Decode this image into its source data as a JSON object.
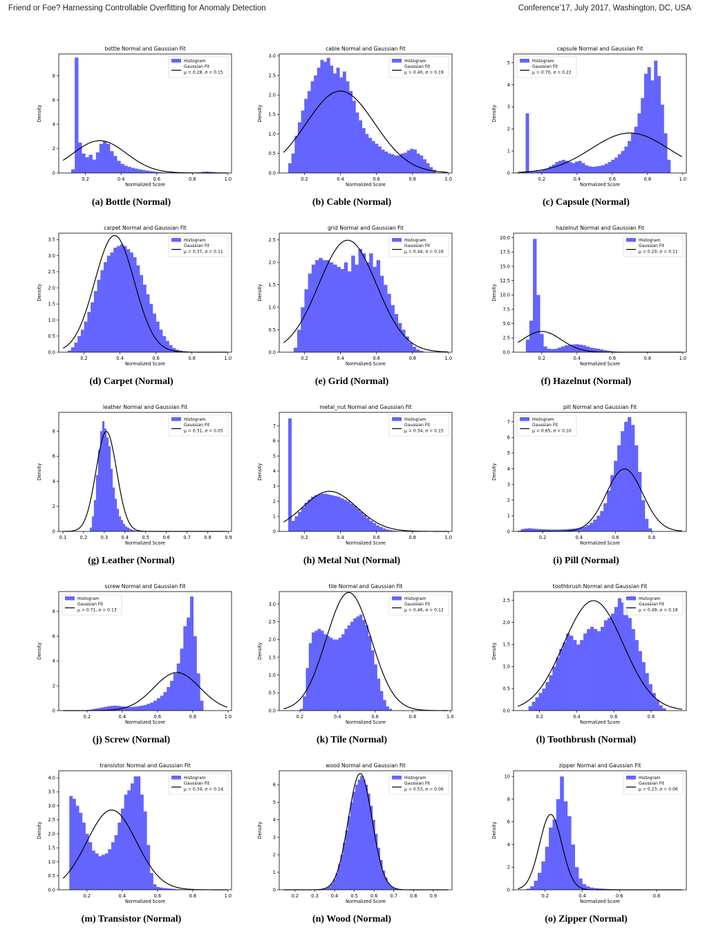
{
  "header": {
    "left": "Friend or Foe? Harnessing Controllable Overfitting for Anomaly Detection",
    "right": "Conference’17, July 2017, Washington, DC, USA"
  },
  "common": {
    "xlabel": "Normalized Score",
    "ylabel": "Density",
    "legend_hist": "Histogram",
    "legend_fit": "Gaussian Fit",
    "hist_color": "#6464ff",
    "fit_color": "#000000"
  },
  "chart_data": [
    {
      "type": "bar",
      "title": "bottle Normal and Gaussian Fit",
      "caption": "(a) Bottle (Normal)",
      "xlim": [
        0.05,
        1.02
      ],
      "xticks": [
        "0.2",
        "0.4",
        "0.6",
        "0.8",
        "1.0"
      ],
      "ylim": [
        0,
        9.8
      ],
      "yticks": [
        "0",
        "2",
        "4",
        "6",
        "8"
      ],
      "mu": 0.28,
      "sigma": 0.15,
      "fit_text": "μ = 0.28,  σ = 0.15",
      "legend": "right",
      "bins": [
        0.12,
        0.99
      ],
      "heights": [
        0.3,
        9.5,
        2.5,
        1.6,
        1.3,
        1.5,
        1.1,
        1.7,
        2.4,
        2.6,
        2.4,
        1.8,
        1.4,
        1.0,
        0.75,
        0.6,
        0.5,
        0.42,
        0.36,
        0.3,
        0.25,
        0.2,
        0.16,
        0.12,
        0.09,
        0.07,
        0.05,
        0.04,
        0.03,
        0.03,
        0.02,
        0.02,
        0.02,
        0.02,
        0.03,
        0.04,
        0.06,
        0.1,
        0.12,
        0.1,
        0.08,
        0.05,
        0.03,
        0.02
      ]
    },
    {
      "type": "bar",
      "title": "cable Normal and Gaussian Fit",
      "caption": "(b) Cable (Normal)",
      "xlim": [
        0.06,
        1.02
      ],
      "xticks": [
        "0.0",
        "0.2",
        "0.4",
        "0.6",
        "0.8",
        "1.0"
      ],
      "ylim": [
        0,
        3.05
      ],
      "yticks": [
        "0.0",
        "0.5",
        "1.0",
        "1.5",
        "2.0",
        "2.5",
        "3.0"
      ],
      "mu": 0.4,
      "sigma": 0.19,
      "fit_text": "μ = 0.40,  σ = 0.19",
      "legend": "right",
      "bins": [
        0.11,
        0.93
      ],
      "heights": [
        0.25,
        0.5,
        0.95,
        1.3,
        1.6,
        1.9,
        2.1,
        2.35,
        2.5,
        2.7,
        2.9,
        2.85,
        2.95,
        2.75,
        2.55,
        2.7,
        2.45,
        2.6,
        2.35,
        2.1,
        1.85,
        1.55,
        1.35,
        1.15,
        1.0,
        0.9,
        0.82,
        0.75,
        0.68,
        0.6,
        0.55,
        0.5,
        0.48,
        0.45,
        0.45,
        0.5,
        0.52,
        0.58,
        0.62,
        0.6,
        0.5,
        0.45,
        0.35,
        0.25,
        0.15,
        0.08
      ]
    },
    {
      "type": "bar",
      "title": "capsule Normal and Gaussian Fit",
      "caption": "(c) Capsule (Normal)",
      "xlim": [
        0.04,
        1.02
      ],
      "xticks": [
        "0.2",
        "0.4",
        "0.6",
        "0.8",
        "1.0"
      ],
      "ylim": [
        0,
        5.4
      ],
      "yticks": [
        "0",
        "1",
        "2",
        "3",
        "4",
        "5"
      ],
      "mu": 0.7,
      "sigma": 0.22,
      "fit_text": "μ = 0.70,  σ = 0.22",
      "legend": "left",
      "bins": [
        0.09,
        0.93
      ],
      "heights": [
        0.05,
        2.7,
        0.08,
        0.06,
        0.08,
        0.1,
        0.15,
        0.2,
        0.3,
        0.38,
        0.5,
        0.55,
        0.6,
        0.55,
        0.5,
        0.45,
        0.52,
        0.55,
        0.45,
        0.35,
        0.3,
        0.28,
        0.3,
        0.32,
        0.35,
        0.42,
        0.5,
        0.6,
        0.7,
        0.85,
        1.0,
        1.2,
        1.45,
        1.8,
        2.1,
        2.7,
        3.4,
        4.5,
        4.8,
        4.2,
        5.1,
        4.4,
        3.1,
        1.8,
        0.6
      ]
    },
    {
      "type": "bar",
      "title": "carpet Normal and Gaussian Fit",
      "caption": "(d) Carpet (Normal)",
      "xlim": [
        0.06,
        1.02
      ],
      "xticks": [
        "0.2",
        "0.4",
        "0.6",
        "0.8",
        "1.0"
      ],
      "ylim": [
        0,
        3.7
      ],
      "yticks": [
        "0.0",
        "0.5",
        "1.0",
        "1.5",
        "2.0",
        "2.5",
        "3.0",
        "3.5"
      ],
      "mu": 0.37,
      "sigma": 0.11,
      "fit_text": "μ = 0.37,  σ = 0.11",
      "legend": "right",
      "bins": [
        0.11,
        0.8
      ],
      "heights": [
        0.05,
        0.15,
        0.3,
        0.5,
        0.7,
        0.95,
        1.25,
        1.55,
        1.9,
        2.25,
        2.55,
        2.8,
        3.0,
        3.1,
        3.25,
        3.3,
        3.35,
        3.3,
        3.2,
        3.1,
        2.95,
        2.7,
        2.4,
        2.1,
        1.8,
        1.5,
        1.2,
        0.95,
        0.7,
        0.5,
        0.35,
        0.22,
        0.13,
        0.08,
        0.05,
        0.03,
        0.02,
        0.01
      ]
    },
    {
      "type": "bar",
      "title": "grid Normal and Gaussian Fit",
      "caption": "(e) Grid (Normal)",
      "xlim": [
        0.06,
        1.02
      ],
      "xticks": [
        "0.0",
        "0.2",
        "0.4",
        "0.6",
        "0.8",
        "1.0"
      ],
      "ylim": [
        0,
        2.65
      ],
      "yticks": [
        "0.0",
        "0.5",
        "1.0",
        "1.5",
        "2.0",
        "2.5"
      ],
      "mu": 0.44,
      "sigma": 0.16,
      "fit_text": "μ = 0.44,  σ = 0.16",
      "legend": "right",
      "bins": [
        0.14,
        0.86
      ],
      "heights": [
        0.1,
        0.5,
        1.0,
        1.4,
        1.75,
        1.95,
        2.05,
        2.1,
        2.05,
        2.05,
        2.0,
        1.95,
        1.9,
        1.85,
        2.0,
        1.8,
        2.15,
        1.95,
        2.3,
        2.2,
        2.0,
        2.2,
        1.9,
        2.05,
        1.7,
        1.5,
        1.3,
        1.05,
        0.85,
        0.65,
        0.5,
        0.35,
        0.22,
        0.12,
        0.06,
        0.03
      ]
    },
    {
      "type": "bar",
      "title": "hazelnut Normal and Gaussian Fit",
      "caption": "(f) Hazelnut (Normal)",
      "xlim": [
        0.04,
        1.02
      ],
      "xticks": [
        "0.2",
        "0.4",
        "0.6",
        "0.8",
        "1.0"
      ],
      "ylim": [
        0,
        20.8
      ],
      "yticks": [
        "0.0",
        "2.5",
        "5.0",
        "7.5",
        "10.0",
        "12.5",
        "15.0",
        "17.5",
        "20.0"
      ],
      "mu": 0.2,
      "sigma": 0.11,
      "fit_text": "μ = 0.20,  σ = 0.11",
      "legend": "right",
      "bins": [
        0.11,
        0.71
      ],
      "heights": [
        2.2,
        5.5,
        19.8,
        10.0,
        3.2,
        1.0,
        0.6,
        0.55,
        0.6,
        0.8,
        1.0,
        1.2,
        1.3,
        1.35,
        1.4,
        1.3,
        1.2,
        1.0,
        0.8,
        0.7,
        0.6,
        0.5,
        0.35,
        0.25,
        0.15,
        0.1,
        0.06,
        0.04,
        0.02,
        0.01
      ]
    },
    {
      "type": "bar",
      "title": "leather Normal and Gaussian Fit",
      "caption": "(g) Leather (Normal)",
      "xlim": [
        0.08,
        0.915
      ],
      "xticks": [
        "0.1",
        "0.2",
        "0.3",
        "0.4",
        "0.5",
        "0.6",
        "0.7",
        "0.8",
        "0.9"
      ],
      "ylim": [
        0,
        9.5
      ],
      "yticks": [
        "0",
        "2",
        "4",
        "6",
        "8"
      ],
      "mu": 0.31,
      "sigma": 0.05,
      "fit_text": "μ = 0.31,  σ = 0.05",
      "legend": "right",
      "bins": [
        0.23,
        0.5
      ],
      "heights": [
        0.3,
        1.2,
        2.5,
        4.5,
        6.5,
        8.0,
        8.8,
        8.2,
        7.5,
        6.8,
        5.0,
        3.5,
        2.6,
        1.8,
        1.2,
        0.9,
        0.6,
        0.4,
        0.3,
        0.2,
        0.12,
        0.08,
        0.05,
        0.04,
        0.03,
        0.02,
        0.02
      ]
    },
    {
      "type": "bar",
      "title": "metal_nut Normal and Gaussian Fit",
      "caption": "(h) Metal Nut (Normal)",
      "xlim": [
        0.06,
        1.02
      ],
      "xticks": [
        "0.0",
        "0.2",
        "0.4",
        "0.6",
        "0.8",
        "1.0"
      ],
      "ylim": [
        0,
        7.9
      ],
      "yticks": [
        "0",
        "1",
        "2",
        "3",
        "4",
        "5",
        "6",
        "7"
      ],
      "mu": 0.34,
      "sigma": 0.15,
      "fit_text": "μ = 0.34,  σ = 0.15",
      "legend": "right",
      "bins": [
        0.11,
        0.76
      ],
      "heights": [
        7.5,
        0.7,
        1.0,
        1.3,
        1.6,
        1.9,
        2.1,
        2.3,
        2.4,
        2.45,
        2.5,
        2.5,
        2.45,
        2.4,
        2.35,
        2.3,
        2.2,
        2.1,
        2.0,
        1.85,
        1.7,
        1.5,
        1.3,
        1.1,
        0.9,
        0.7,
        0.55,
        0.4,
        0.3,
        0.2,
        0.13,
        0.08,
        0.05,
        0.03,
        0.02,
        0.01
      ]
    },
    {
      "type": "bar",
      "title": "pill Normal and Gaussian Fit",
      "caption": "(i) Pill (Normal)",
      "xlim": [
        0.04,
        0.99
      ],
      "xticks": [
        "0.2",
        "0.4",
        "0.6",
        "0.8"
      ],
      "ylim": [
        0,
        7.6
      ],
      "yticks": [
        "0",
        "1",
        "2",
        "3",
        "4",
        "5",
        "6",
        "7"
      ],
      "mu": 0.65,
      "sigma": 0.1,
      "fit_text": "μ = 0.65,  σ = 0.10",
      "legend": "left",
      "bins": [
        0.08,
        0.8
      ],
      "heights": [
        0.15,
        0.18,
        0.2,
        0.18,
        0.16,
        0.15,
        0.14,
        0.13,
        0.12,
        0.12,
        0.12,
        0.12,
        0.13,
        0.14,
        0.16,
        0.18,
        0.2,
        0.25,
        0.3,
        0.4,
        0.55,
        0.75,
        1.0,
        1.3,
        1.8,
        2.6,
        3.6,
        4.5,
        5.5,
        6.4,
        7.0,
        7.3,
        6.8,
        5.5,
        3.8,
        2.0,
        0.8,
        0.2
      ]
    },
    {
      "type": "bar",
      "title": "screw Normal and Gaussian Fit",
      "caption": "(j) Screw (Normal)",
      "xlim": [
        0.04,
        1.02
      ],
      "xticks": [
        "0.2",
        "0.4",
        "0.6",
        "0.8",
        "1.0"
      ],
      "ylim": [
        0,
        9.6
      ],
      "yticks": [
        "0",
        "2",
        "4",
        "6",
        "8"
      ],
      "mu": 0.71,
      "sigma": 0.13,
      "fit_text": "μ = 0.71,  σ = 0.13",
      "legend": "left",
      "bins": [
        0.2,
        0.86
      ],
      "heights": [
        0.05,
        0.1,
        0.15,
        0.2,
        0.25,
        0.3,
        0.35,
        0.38,
        0.4,
        0.38,
        0.35,
        0.32,
        0.3,
        0.3,
        0.32,
        0.35,
        0.4,
        0.45,
        0.55,
        0.65,
        0.8,
        1.0,
        1.2,
        1.5,
        1.9,
        2.4,
        3.0,
        3.8,
        5.0,
        6.8,
        7.5,
        9.2,
        6.0,
        3.0,
        0.8
      ]
    },
    {
      "type": "bar",
      "title": "tile Normal and Gaussian Fit",
      "caption": "(k) Tile (Normal)",
      "xlim": [
        0.09,
        1.01
      ],
      "xticks": [
        "0.2",
        "0.4",
        "0.6",
        "0.8",
        "1.0"
      ],
      "ylim": [
        0,
        3.35
      ],
      "yticks": [
        "0.0",
        "0.5",
        "1.0",
        "1.5",
        "2.0",
        "2.5",
        "3.0"
      ],
      "mu": 0.46,
      "sigma": 0.12,
      "fit_text": "μ = 0.46,  σ = 0.12",
      "legend": "right",
      "bins": [
        0.2,
        0.69
      ],
      "heights": [
        0.05,
        0.4,
        1.2,
        1.9,
        2.2,
        2.25,
        2.3,
        2.25,
        2.15,
        2.1,
        2.05,
        2.0,
        2.0,
        2.05,
        2.15,
        2.3,
        2.4,
        2.5,
        2.6,
        2.65,
        2.7,
        2.55,
        2.4,
        2.1,
        1.7,
        1.3,
        0.9,
        0.55,
        0.3,
        0.12,
        0.05
      ]
    },
    {
      "type": "bar",
      "title": "toothbrush Normal and Gaussian Fit",
      "caption": "(l) Toothbrush (Normal)",
      "xlim": [
        0.06,
        0.99
      ],
      "xticks": [
        "0.2",
        "0.4",
        "0.6",
        "0.8"
      ],
      "ylim": [
        0,
        2.7
      ],
      "yticks": [
        "0.0",
        "0.5",
        "1.0",
        "1.5",
        "2.0",
        "2.5"
      ],
      "mu": 0.49,
      "sigma": 0.16,
      "fit_text": "μ = 0.49,  σ = 0.16",
      "legend": "right",
      "bins": [
        0.14,
        0.88
      ],
      "heights": [
        0.1,
        0.2,
        0.3,
        0.4,
        0.5,
        0.65,
        0.8,
        1.0,
        1.2,
        1.4,
        1.55,
        1.75,
        1.7,
        1.6,
        1.5,
        1.6,
        1.75,
        1.85,
        1.9,
        1.85,
        1.8,
        1.9,
        2.05,
        2.1,
        2.2,
        2.35,
        2.55,
        2.45,
        2.3,
        2.1,
        1.85,
        1.6,
        1.35,
        1.1,
        0.85,
        0.6,
        0.4,
        0.25,
        0.12,
        0.05
      ]
    },
    {
      "type": "bar",
      "title": "transistor Normal and Gaussian Fit",
      "caption": "(m) Transistor (Normal)",
      "xlim": [
        0.04,
        1.02
      ],
      "xticks": [
        "0.2",
        "0.4",
        "0.6",
        "0.8",
        "1.0"
      ],
      "ylim": [
        0,
        4.25
      ],
      "yticks": [
        "0.0",
        "0.5",
        "1.0",
        "1.5",
        "2.0",
        "2.5",
        "3.0",
        "3.5",
        "4.0"
      ],
      "mu": 0.34,
      "sigma": 0.14,
      "fit_text": "μ = 0.34,  σ = 0.14",
      "legend": "right",
      "bins": [
        0.1,
        0.74
      ],
      "heights": [
        3.35,
        3.25,
        3.0,
        2.75,
        2.4,
        2.0,
        1.7,
        1.4,
        1.3,
        1.2,
        1.25,
        1.3,
        1.45,
        1.7,
        1.95,
        2.4,
        2.9,
        3.4,
        3.55,
        3.8,
        4.05,
        4.05,
        3.4,
        2.8,
        1.6,
        0.6,
        0.2,
        0.1,
        0.08,
        0.06,
        0.05,
        0.04,
        0.03,
        0.02,
        0.02
      ]
    },
    {
      "type": "bar",
      "title": "wood Normal and Gaussian Fit",
      "caption": "(n) Wood (Normal)",
      "xlim": [
        0.12,
        0.995
      ],
      "xticks": [
        "0.2",
        "0.3",
        "0.4",
        "0.5",
        "0.6",
        "0.7",
        "0.8",
        "0.9"
      ],
      "ylim": [
        0,
        6.8
      ],
      "yticks": [
        "0",
        "1",
        "2",
        "3",
        "4",
        "5",
        "6"
      ],
      "mu": 0.53,
      "sigma": 0.06,
      "fit_text": "μ = 0.53,  σ = 0.06",
      "legend": "right",
      "bins": [
        0.33,
        0.73
      ],
      "heights": [
        0.02,
        0.05,
        0.1,
        0.2,
        0.35,
        0.6,
        0.95,
        1.45,
        2.0,
        2.7,
        3.4,
        4.2,
        5.0,
        5.6,
        6.0,
        6.3,
        6.5,
        6.3,
        6.0,
        5.5,
        4.8,
        4.0,
        3.2,
        2.4,
        1.7,
        1.1,
        0.7,
        0.4,
        0.22,
        0.12,
        0.06,
        0.03
      ]
    },
    {
      "type": "bar",
      "title": "zipper Normal and Gaussian Fit",
      "caption": "(o) Zipper (Normal)",
      "xlim": [
        0.03,
        0.96
      ],
      "xticks": [
        "0.2",
        "0.4",
        "0.6",
        "0.8"
      ],
      "ylim": [
        0,
        10.5
      ],
      "yticks": [
        "0",
        "2",
        "4",
        "6",
        "8",
        "10"
      ],
      "mu": 0.23,
      "sigma": 0.06,
      "fit_text": "μ = 0.23,  σ = 0.06",
      "legend": "right",
      "bins": [
        0.1,
        0.78
      ],
      "heights": [
        0.1,
        0.3,
        0.8,
        1.5,
        2.5,
        3.8,
        5.5,
        6.2,
        8.0,
        10.0,
        7.8,
        6.5,
        4.0,
        2.0,
        1.0,
        0.5,
        0.3,
        0.2,
        0.15,
        0.12,
        0.1,
        0.08,
        0.06,
        0.05,
        0.04,
        0.03,
        0.03,
        0.02,
        0.02,
        0.02,
        0.01,
        0.01,
        0.01,
        0.01
      ]
    }
  ]
}
